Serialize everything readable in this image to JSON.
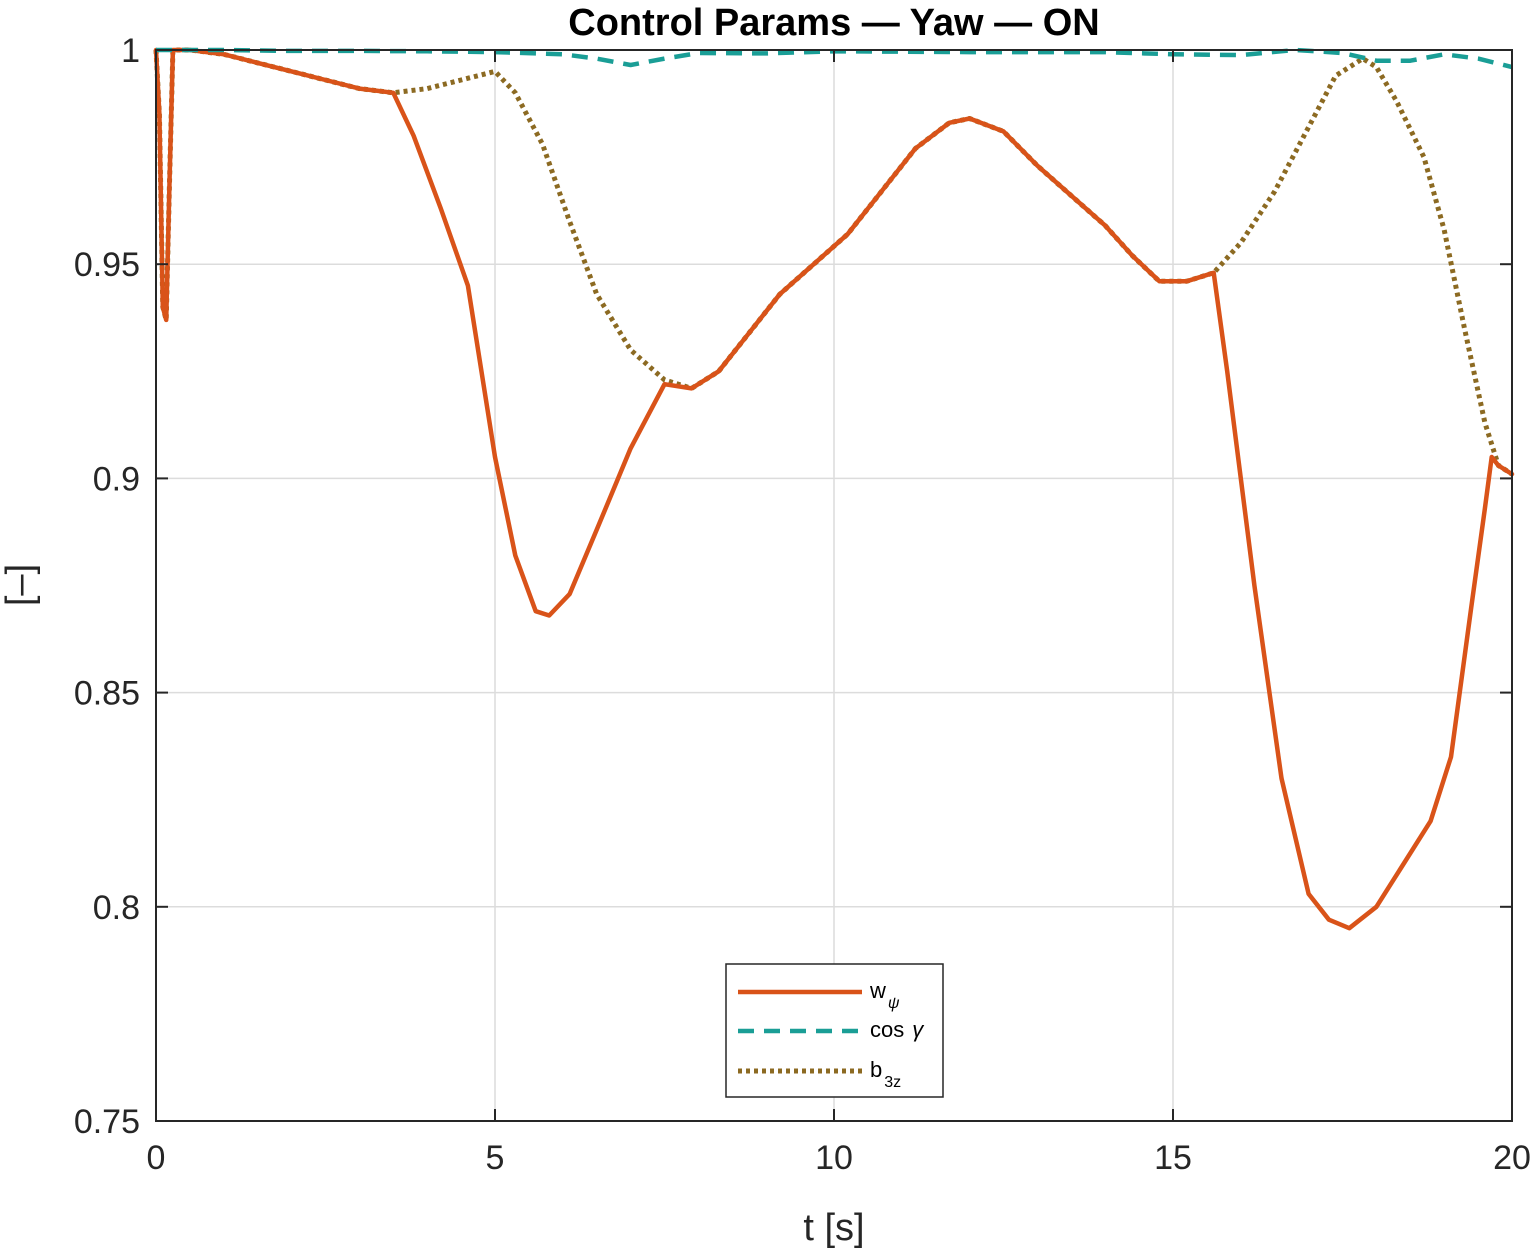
{
  "chart_data": {
    "type": "line",
    "title": "Control Params — Yaw — ON",
    "xlabel": "t [s]",
    "ylabel": "[–]",
    "xlim": [
      0,
      20
    ],
    "ylim": [
      0.75,
      1
    ],
    "xticks": [
      0,
      5,
      10,
      15,
      20
    ],
    "xtick_labels": [
      "0",
      "5",
      "10",
      "15",
      "20"
    ],
    "yticks": [
      0.75,
      0.8,
      0.85,
      0.9,
      0.95,
      1
    ],
    "ytick_labels": [
      "0.75",
      "0.8",
      "0.85",
      "0.9",
      "0.95",
      "1"
    ],
    "grid": true,
    "legend_position": "bottom-center",
    "series": [
      {
        "name": "w",
        "name_subscript": "ψ",
        "color": "#D95319",
        "style": "solid",
        "x": [
          0,
          0.05,
          0.1,
          0.15,
          0.2,
          0.25,
          0.3,
          0.5,
          1,
          1.5,
          2,
          2.5,
          3,
          3.5,
          3.8,
          4.2,
          4.6,
          5,
          5.3,
          5.6,
          5.8,
          6.1,
          6.5,
          7,
          7.5,
          7.9,
          8.3,
          8.7,
          9.2,
          9.7,
          10.2,
          10.7,
          11.2,
          11.7,
          12,
          12.5,
          13,
          13.5,
          14,
          14.4,
          14.8,
          15.2,
          15.6,
          15.8,
          16.2,
          16.6,
          17,
          17.3,
          17.6,
          18,
          18.4,
          18.8,
          19.1,
          19.4,
          19.6,
          19.7,
          19.8,
          20
        ],
        "y": [
          1,
          0.985,
          0.94,
          0.937,
          0.97,
          1,
          1,
          1,
          0.999,
          0.997,
          0.995,
          0.993,
          0.991,
          0.99,
          0.98,
          0.963,
          0.945,
          0.905,
          0.882,
          0.869,
          0.868,
          0.873,
          0.888,
          0.907,
          0.922,
          0.921,
          0.925,
          0.933,
          0.943,
          0.95,
          0.957,
          0.967,
          0.977,
          0.983,
          0.984,
          0.981,
          0.973,
          0.966,
          0.959,
          0.952,
          0.946,
          0.946,
          0.948,
          0.925,
          0.875,
          0.83,
          0.803,
          0.797,
          0.795,
          0.8,
          0.81,
          0.82,
          0.835,
          0.87,
          0.893,
          0.905,
          0.903,
          0.901
        ]
      },
      {
        "name": "cos",
        "name_suffix": "γ",
        "color": "#1A9E96",
        "style": "dashed",
        "x": [
          0,
          1,
          2,
          3,
          4,
          5,
          6,
          6.5,
          7,
          7.5,
          8,
          9,
          10,
          11,
          12,
          13,
          14,
          15,
          16,
          16.8,
          17.5,
          18,
          18.5,
          19,
          19.5,
          20
        ],
        "y": [
          1,
          1,
          0.9998,
          0.9998,
          0.9997,
          0.9995,
          0.999,
          0.998,
          0.9965,
          0.998,
          0.9993,
          0.9992,
          0.9997,
          0.9996,
          0.9995,
          0.9995,
          0.9995,
          0.999,
          0.9988,
          1,
          0.9993,
          0.9975,
          0.9975,
          0.999,
          0.998,
          0.996
        ]
      },
      {
        "name": "b",
        "name_subscript": "3z",
        "color": "#8C6A22",
        "style": "dotted",
        "x": [
          0,
          0.05,
          0.1,
          0.15,
          0.2,
          0.25,
          0.3,
          0.5,
          1,
          1.5,
          2,
          2.5,
          3,
          3.5,
          4,
          4.5,
          5,
          5.3,
          5.7,
          6.1,
          6.5,
          7,
          7.5,
          7.9,
          8.3,
          8.7,
          9.2,
          9.7,
          10.2,
          10.7,
          11.2,
          11.7,
          12,
          12.5,
          13,
          13.5,
          14,
          14.4,
          14.8,
          15.2,
          15.6,
          16,
          16.5,
          17,
          17.4,
          17.8,
          18,
          18.3,
          18.7,
          19,
          19.3,
          19.6,
          19.8,
          20
        ],
        "y": [
          1,
          0.985,
          0.94,
          0.937,
          0.97,
          1,
          1,
          1,
          0.999,
          0.997,
          0.995,
          0.993,
          0.991,
          0.99,
          0.991,
          0.993,
          0.995,
          0.99,
          0.978,
          0.96,
          0.943,
          0.93,
          0.923,
          0.921,
          0.925,
          0.933,
          0.943,
          0.95,
          0.957,
          0.967,
          0.977,
          0.983,
          0.984,
          0.981,
          0.973,
          0.966,
          0.959,
          0.952,
          0.946,
          0.946,
          0.948,
          0.955,
          0.967,
          0.982,
          0.994,
          0.998,
          0.996,
          0.988,
          0.975,
          0.958,
          0.935,
          0.913,
          0.903,
          0.901
        ]
      }
    ]
  }
}
